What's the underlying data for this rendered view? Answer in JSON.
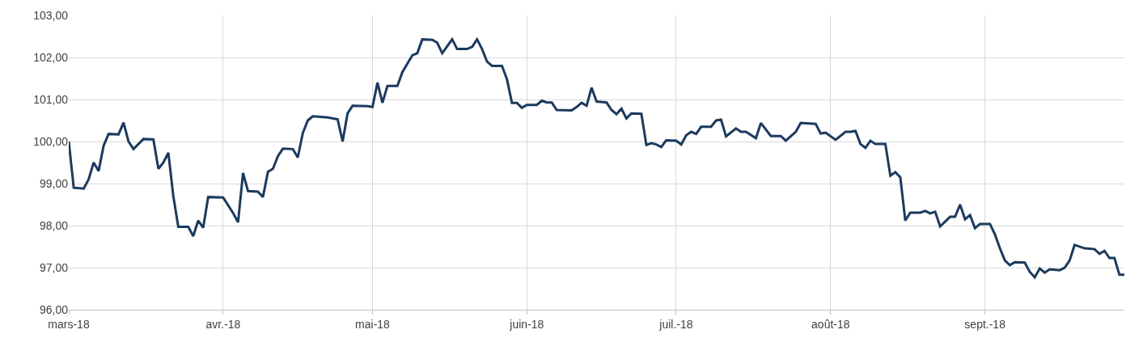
{
  "chart_data": {
    "type": "line",
    "x": [
      "2018-03-01",
      "2018-03-02",
      "2018-03-04",
      "2018-03-05",
      "2018-03-06",
      "2018-03-07",
      "2018-03-08",
      "2018-03-09",
      "2018-03-11",
      "2018-03-12",
      "2018-03-13",
      "2018-03-14",
      "2018-03-16",
      "2018-03-18",
      "2018-03-19",
      "2018-03-20",
      "2018-03-21",
      "2018-03-22",
      "2018-03-23",
      "2018-03-25",
      "2018-03-26",
      "2018-03-27",
      "2018-03-28",
      "2018-03-29",
      "2018-04-01",
      "2018-04-03",
      "2018-04-04",
      "2018-04-05",
      "2018-04-06",
      "2018-04-08",
      "2018-04-09",
      "2018-04-10",
      "2018-04-11",
      "2018-04-12",
      "2018-04-13",
      "2018-04-15",
      "2018-04-16",
      "2018-04-17",
      "2018-04-18",
      "2018-04-19",
      "2018-04-22",
      "2018-04-24",
      "2018-04-25",
      "2018-04-26",
      "2018-04-27",
      "2018-04-30",
      "2018-05-01",
      "2018-05-02",
      "2018-05-03",
      "2018-05-04",
      "2018-05-06",
      "2018-05-07",
      "2018-05-08",
      "2018-05-09",
      "2018-05-10",
      "2018-05-11",
      "2018-05-13",
      "2018-05-14",
      "2018-05-15",
      "2018-05-17",
      "2018-05-18",
      "2018-05-20",
      "2018-05-21",
      "2018-05-22",
      "2018-05-23",
      "2018-05-24",
      "2018-05-25",
      "2018-05-27",
      "2018-05-28",
      "2018-05-29",
      "2018-05-30",
      "2018-05-31",
      "2018-06-01",
      "2018-06-03",
      "2018-06-04",
      "2018-06-05",
      "2018-06-06",
      "2018-06-07",
      "2018-06-10",
      "2018-06-11",
      "2018-06-12",
      "2018-06-13",
      "2018-06-14",
      "2018-06-15",
      "2018-06-17",
      "2018-06-18",
      "2018-06-19",
      "2018-06-20",
      "2018-06-21",
      "2018-06-22",
      "2018-06-24",
      "2018-06-25",
      "2018-06-26",
      "2018-06-27",
      "2018-06-28",
      "2018-06-29",
      "2018-07-01",
      "2018-07-02",
      "2018-07-03",
      "2018-07-04",
      "2018-07-05",
      "2018-07-06",
      "2018-07-08",
      "2018-07-09",
      "2018-07-10",
      "2018-07-11",
      "2018-07-13",
      "2018-07-14",
      "2018-07-15",
      "2018-07-17",
      "2018-07-18",
      "2018-07-20",
      "2018-07-22",
      "2018-07-23",
      "2018-07-25",
      "2018-07-26",
      "2018-07-29",
      "2018-07-30",
      "2018-07-31",
      "2018-08-02",
      "2018-08-04",
      "2018-08-05",
      "2018-08-06",
      "2018-08-07",
      "2018-08-08",
      "2018-08-09",
      "2018-08-10",
      "2018-08-12",
      "2018-08-13",
      "2018-08-14",
      "2018-08-15",
      "2018-08-16",
      "2018-08-17",
      "2018-08-19",
      "2018-08-20",
      "2018-08-21",
      "2018-08-22",
      "2018-08-23",
      "2018-08-25",
      "2018-08-26",
      "2018-08-27",
      "2018-08-28",
      "2018-08-29",
      "2018-08-30",
      "2018-08-31",
      "2018-09-02",
      "2018-09-03",
      "2018-09-04",
      "2018-09-05",
      "2018-09-06",
      "2018-09-07",
      "2018-09-09",
      "2018-09-10",
      "2018-09-11",
      "2018-09-12",
      "2018-09-13",
      "2018-09-14",
      "2018-09-16",
      "2018-09-17",
      "2018-09-18",
      "2018-09-19",
      "2018-09-21",
      "2018-09-23",
      "2018-09-24",
      "2018-09-25",
      "2018-09-26",
      "2018-09-27",
      "2018-09-28",
      "2018-09-29"
    ],
    "series": [
      {
        "color": "#1b3a5e",
        "values": [
          100.0,
          98.9,
          98.88,
          99.1,
          99.5,
          99.3,
          99.9,
          100.18,
          100.17,
          100.45,
          100.0,
          99.82,
          100.06,
          100.05,
          99.35,
          99.5,
          99.73,
          98.7,
          97.97,
          97.97,
          97.75,
          98.12,
          97.95,
          98.68,
          98.67,
          98.3,
          98.08,
          99.25,
          98.82,
          98.81,
          98.68,
          99.28,
          99.35,
          99.65,
          99.83,
          99.82,
          99.62,
          100.2,
          100.5,
          100.6,
          100.57,
          100.53,
          100.0,
          100.67,
          100.85,
          100.84,
          100.82,
          101.4,
          100.92,
          101.32,
          101.32,
          101.65,
          101.85,
          102.05,
          102.1,
          102.43,
          102.42,
          102.35,
          102.1,
          102.43,
          102.2,
          102.2,
          102.25,
          102.43,
          102.2,
          101.9,
          101.8,
          101.8,
          101.48,
          100.92,
          100.92,
          100.8,
          100.87,
          100.87,
          100.97,
          100.93,
          100.93,
          100.75,
          100.74,
          100.82,
          100.92,
          100.85,
          101.28,
          100.95,
          100.93,
          100.75,
          100.65,
          100.78,
          100.55,
          100.67,
          100.66,
          99.92,
          99.96,
          99.93,
          99.87,
          100.03,
          100.02,
          99.93,
          100.15,
          100.23,
          100.18,
          100.35,
          100.35,
          100.5,
          100.52,
          100.12,
          100.31,
          100.23,
          100.23,
          100.08,
          100.44,
          100.13,
          100.13,
          100.02,
          100.23,
          100.44,
          100.42,
          100.19,
          100.21,
          100.04,
          100.23,
          100.23,
          100.25,
          99.94,
          99.85,
          100.02,
          99.94,
          99.94,
          99.19,
          99.27,
          99.15,
          98.12,
          98.31,
          98.31,
          98.35,
          98.29,
          98.33,
          97.98,
          98.21,
          98.21,
          98.5,
          98.15,
          98.25,
          97.94,
          98.04,
          98.04,
          97.79,
          97.46,
          97.17,
          97.06,
          97.13,
          97.12,
          96.9,
          96.77,
          96.98,
          96.88,
          96.96,
          96.94,
          97.0,
          97.17,
          97.54,
          97.46,
          97.44,
          97.33,
          97.4,
          97.23,
          97.23,
          96.83,
          96.83
        ]
      }
    ],
    "xlim": [
      "2018-03-01",
      "2018-09-29"
    ],
    "xticks": [
      {
        "value": "2018-03-01",
        "label": "mars-18"
      },
      {
        "value": "2018-04-01",
        "label": "avr.-18"
      },
      {
        "value": "2018-05-01",
        "label": "mai-18"
      },
      {
        "value": "2018-06-01",
        "label": "juin-18"
      },
      {
        "value": "2018-07-01",
        "label": "juil.-18"
      },
      {
        "value": "2018-08-01",
        "label": "août-18"
      },
      {
        "value": "2018-09-01",
        "label": "sept.-18"
      }
    ],
    "ylim": [
      96,
      103
    ],
    "yticks": [
      {
        "value": 96,
        "label": "96,00"
      },
      {
        "value": 97,
        "label": "97,00"
      },
      {
        "value": 98,
        "label": "98,00"
      },
      {
        "value": 99,
        "label": "99,00"
      },
      {
        "value": 100,
        "label": "100,00"
      },
      {
        "value": 101,
        "label": "101,00"
      },
      {
        "value": 102,
        "label": "102,00"
      },
      {
        "value": 103,
        "label": "103,00"
      }
    ],
    "grid": true,
    "marker": "none",
    "line_style": "solid"
  }
}
